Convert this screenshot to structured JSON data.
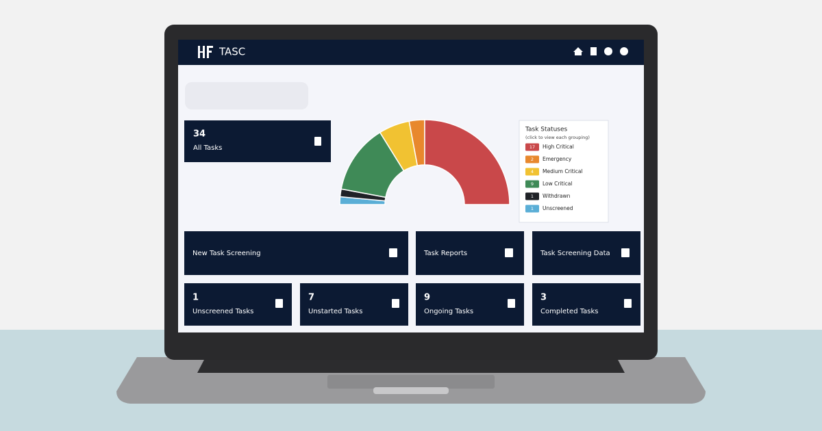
{
  "header": {
    "brand": "TASC"
  },
  "summary": {
    "count": 34,
    "label": "All Tasks"
  },
  "legend": {
    "title": "Task Statuses",
    "subtitle": "(click to view each grouping)"
  },
  "chart_data": {
    "type": "donut",
    "categories": [
      "High Critical",
      "Emergency",
      "Medium Critical",
      "Low Critical",
      "Withdrawn",
      "Unscreened"
    ],
    "values": [
      17,
      2,
      4,
      9,
      1,
      1
    ],
    "colors": [
      "#c9484a",
      "#e8882d",
      "#f1c232",
      "#3f8a57",
      "#1f2227",
      "#5aaed6"
    ]
  },
  "actions": [
    "New Task Screening",
    "Task Reports",
    "Task Screening Data"
  ],
  "stats": [
    {
      "count": 1,
      "label": "Unscreened Tasks"
    },
    {
      "count": 7,
      "label": "Unstarted Tasks"
    },
    {
      "count": 9,
      "label": "Ongoing Tasks"
    },
    {
      "count": 3,
      "label": "Completed Tasks"
    }
  ]
}
